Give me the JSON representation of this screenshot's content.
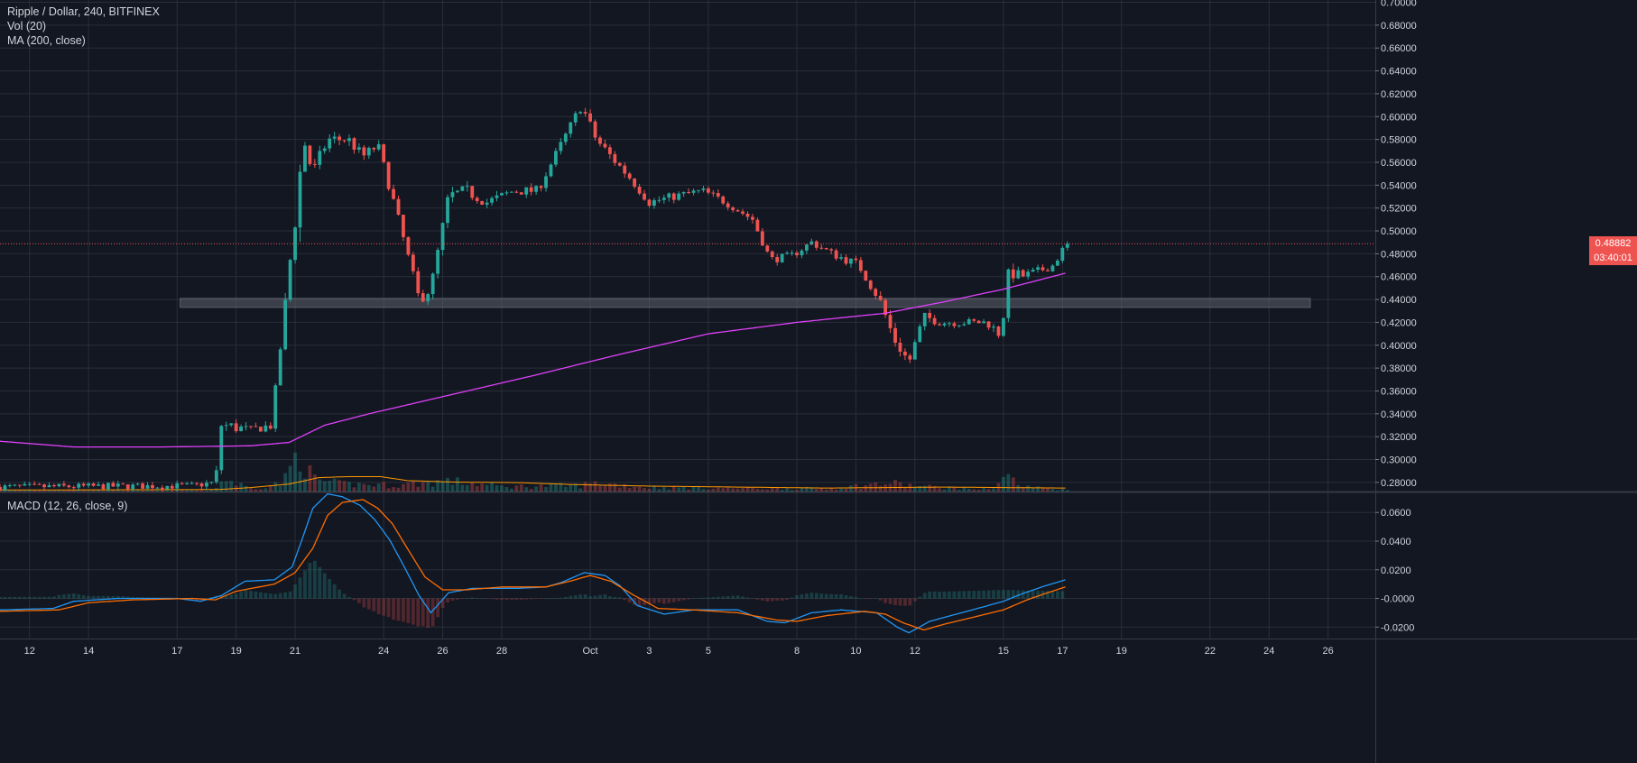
{
  "header": {
    "symbol_line": "Ripple / Dollar, 240, BITFINEX",
    "vol_label": "Vol (20)",
    "ma_label": "MA (200, close)",
    "macd_label": "MACD (12, 26, close, 9)"
  },
  "price_tags": {
    "last_price": "0.48882",
    "countdown": "03:40:01"
  },
  "colors": {
    "background": "#131722",
    "grid": "#2a2e39",
    "up": "#26a69a",
    "down": "#ef5350",
    "ma": "#e040fb",
    "macd": "#2196f3",
    "signal": "#ff6d00",
    "vol_ma": "#ff9800",
    "zone": "#5d606b"
  },
  "chart_data": [
    {
      "type": "candlestick",
      "title": "Ripple / Dollar, 240, BITFINEX",
      "ylim": [
        0.272,
        0.702
      ],
      "y_ticks": [
        "0.70000",
        "0.68000",
        "0.66000",
        "0.64000",
        "0.62000",
        "0.60000",
        "0.58000",
        "0.56000",
        "0.54000",
        "0.52000",
        "0.50000",
        "0.48000",
        "0.46000",
        "0.44000",
        "0.42000",
        "0.40000",
        "0.38000",
        "0.36000",
        "0.34000",
        "0.32000",
        "0.30000",
        "0.28000"
      ],
      "x_ticks": [
        {
          "day": 12,
          "label": "12"
        },
        {
          "day": 14,
          "label": "14"
        },
        {
          "day": 17,
          "label": "17"
        },
        {
          "day": 19,
          "label": "19"
        },
        {
          "day": 21,
          "label": "21"
        },
        {
          "day": 24,
          "label": "24"
        },
        {
          "day": 26,
          "label": "26"
        },
        {
          "day": 28,
          "label": "28"
        },
        {
          "day": 31,
          "label": "Oct"
        },
        {
          "day": 33,
          "label": "3"
        },
        {
          "day": 35,
          "label": "5"
        },
        {
          "day": 38,
          "label": "8"
        },
        {
          "day": 40,
          "label": "10"
        },
        {
          "day": 42,
          "label": "12"
        },
        {
          "day": 45,
          "label": "15"
        },
        {
          "day": 47,
          "label": "17"
        },
        {
          "day": 49,
          "label": "19"
        },
        {
          "day": 52,
          "label": "22"
        },
        {
          "day": 54,
          "label": "24"
        },
        {
          "day": 56,
          "label": "26"
        }
      ],
      "close_anchors": [
        [
          11,
          0.276
        ],
        [
          17.5,
          0.277
        ],
        [
          18.3,
          0.28
        ],
        [
          18.5,
          0.33
        ],
        [
          19.5,
          0.326
        ],
        [
          20.2,
          0.33
        ],
        [
          20.6,
          0.42
        ],
        [
          20.9,
          0.49
        ],
        [
          21.3,
          0.58
        ],
        [
          21.6,
          0.55
        ],
        [
          22.1,
          0.58
        ],
        [
          22.8,
          0.58
        ],
        [
          23.3,
          0.565
        ],
        [
          23.8,
          0.575
        ],
        [
          24.4,
          0.52
        ],
        [
          24.9,
          0.47
        ],
        [
          25.2,
          0.44
        ],
        [
          25.6,
          0.45
        ],
        [
          26.2,
          0.53
        ],
        [
          26.8,
          0.535
        ],
        [
          27.5,
          0.525
        ],
        [
          28.4,
          0.535
        ],
        [
          29.2,
          0.535
        ],
        [
          30.0,
          0.575
        ],
        [
          30.7,
          0.61
        ],
        [
          31.2,
          0.58
        ],
        [
          31.7,
          0.565
        ],
        [
          32.4,
          0.545
        ],
        [
          33.0,
          0.525
        ],
        [
          33.8,
          0.53
        ],
        [
          34.8,
          0.535
        ],
        [
          35.6,
          0.525
        ],
        [
          36.5,
          0.51
        ],
        [
          37.1,
          0.475
        ],
        [
          37.8,
          0.478
        ],
        [
          38.5,
          0.49
        ],
        [
          39.2,
          0.48
        ],
        [
          40.1,
          0.47
        ],
        [
          40.8,
          0.44
        ],
        [
          41.3,
          0.405
        ],
        [
          41.8,
          0.385
        ],
        [
          42.3,
          0.425
        ],
        [
          42.9,
          0.42
        ],
        [
          43.6,
          0.42
        ],
        [
          44.4,
          0.42
        ],
        [
          44.9,
          0.41
        ],
        [
          45.2,
          0.465
        ],
        [
          45.6,
          0.46
        ],
        [
          46.2,
          0.465
        ],
        [
          46.7,
          0.47
        ],
        [
          47.1,
          0.488
        ]
      ],
      "candles_per_day": 6,
      "last_price": 0.48882,
      "support_zone": [
        0.433,
        0.441
      ],
      "ma_anchors": [
        [
          11,
          0.316
        ],
        [
          13.5,
          0.311
        ],
        [
          16.5,
          0.311
        ],
        [
          19.5,
          0.312
        ],
        [
          20.8,
          0.315
        ],
        [
          22.0,
          0.33
        ],
        [
          23.5,
          0.34
        ],
        [
          26.0,
          0.355
        ],
        [
          29.0,
          0.373
        ],
        [
          32.0,
          0.392
        ],
        [
          35.0,
          0.41
        ],
        [
          38.0,
          0.42
        ],
        [
          41.0,
          0.428
        ],
        [
          43.0,
          0.438
        ],
        [
          45.0,
          0.449
        ],
        [
          47.1,
          0.463
        ]
      ],
      "volume_anchors": [
        [
          11,
          3
        ],
        [
          18.2,
          4
        ],
        [
          18.6,
          30
        ],
        [
          19.5,
          7
        ],
        [
          20.6,
          20
        ],
        [
          21.1,
          95
        ],
        [
          21.6,
          30
        ],
        [
          22.5,
          18
        ],
        [
          24.5,
          15
        ],
        [
          25.2,
          20
        ],
        [
          26.2,
          25
        ],
        [
          28.0,
          12
        ],
        [
          30.5,
          14
        ],
        [
          31.3,
          20
        ],
        [
          33.0,
          10
        ],
        [
          36.0,
          8
        ],
        [
          39.0,
          7
        ],
        [
          41.2,
          20
        ],
        [
          42.2,
          12
        ],
        [
          44.5,
          5
        ],
        [
          45.1,
          40
        ],
        [
          45.6,
          12
        ],
        [
          47.1,
          4
        ]
      ],
      "vol_ma_anchors": [
        [
          11,
          3
        ],
        [
          18.4,
          4
        ],
        [
          19.5,
          8
        ],
        [
          20.8,
          15
        ],
        [
          21.8,
          28
        ],
        [
          22.8,
          30
        ],
        [
          23.9,
          30
        ],
        [
          24.8,
          22
        ],
        [
          26.5,
          19
        ],
        [
          28.5,
          18
        ],
        [
          30.5,
          14
        ],
        [
          33.0,
          11
        ],
        [
          36.0,
          9
        ],
        [
          39.0,
          7
        ],
        [
          41.0,
          8
        ],
        [
          43.0,
          9
        ],
        [
          45.0,
          8
        ],
        [
          47.1,
          7
        ]
      ],
      "volume_max": 100
    },
    {
      "type": "line",
      "title": "MACD (12, 26, close, 9)",
      "ylim": [
        -0.028,
        0.074
      ],
      "y_ticks": [
        "0.0600",
        "0.0400",
        "0.0200",
        "-0.0000",
        "-0.0200"
      ],
      "y_tick_values": [
        0.06,
        0.04,
        0.02,
        0.0,
        -0.02
      ],
      "series": [
        {
          "name": "MACD",
          "points": [
            [
              11,
              -0.008
            ],
            [
              12.8,
              -0.007
            ],
            [
              13.5,
              -0.002
            ],
            [
              15.0,
              0.0
            ],
            [
              17.0,
              0.0
            ],
            [
              17.8,
              -0.002
            ],
            [
              18.5,
              0.002
            ],
            [
              19.3,
              0.012
            ],
            [
              20.3,
              0.013
            ],
            [
              20.9,
              0.022
            ],
            [
              21.3,
              0.045
            ],
            [
              21.6,
              0.063
            ],
            [
              22.1,
              0.073
            ],
            [
              22.6,
              0.071
            ],
            [
              23.2,
              0.065
            ],
            [
              23.7,
              0.055
            ],
            [
              24.2,
              0.041
            ],
            [
              24.7,
              0.022
            ],
            [
              25.2,
              0.002
            ],
            [
              25.6,
              -0.01
            ],
            [
              26.2,
              0.004
            ],
            [
              27.0,
              0.007
            ],
            [
              28.5,
              0.007
            ],
            [
              29.5,
              0.008
            ],
            [
              30.0,
              0.011
            ],
            [
              30.8,
              0.018
            ],
            [
              31.5,
              0.016
            ],
            [
              32.0,
              0.009
            ],
            [
              32.6,
              -0.005
            ],
            [
              33.5,
              -0.011
            ],
            [
              34.5,
              -0.008
            ],
            [
              36.0,
              -0.008
            ],
            [
              37.0,
              -0.016
            ],
            [
              37.6,
              -0.017
            ],
            [
              38.5,
              -0.01
            ],
            [
              39.5,
              -0.008
            ],
            [
              40.7,
              -0.01
            ],
            [
              41.4,
              -0.02
            ],
            [
              41.8,
              -0.024
            ],
            [
              42.5,
              -0.016
            ],
            [
              43.4,
              -0.011
            ],
            [
              44.3,
              -0.006
            ],
            [
              45.0,
              -0.002
            ],
            [
              45.6,
              0.003
            ],
            [
              46.3,
              0.008
            ],
            [
              47.1,
              0.013
            ]
          ]
        },
        {
          "name": "Signal",
          "points": [
            [
              11,
              -0.009
            ],
            [
              13.0,
              -0.008
            ],
            [
              14.0,
              -0.003
            ],
            [
              15.5,
              -0.001
            ],
            [
              17.5,
              0.0
            ],
            [
              18.3,
              -0.001
            ],
            [
              19.0,
              0.005
            ],
            [
              20.3,
              0.01
            ],
            [
              21.0,
              0.018
            ],
            [
              21.6,
              0.035
            ],
            [
              22.1,
              0.058
            ],
            [
              22.6,
              0.067
            ],
            [
              23.3,
              0.069
            ],
            [
              23.8,
              0.063
            ],
            [
              24.3,
              0.052
            ],
            [
              24.8,
              0.035
            ],
            [
              25.4,
              0.015
            ],
            [
              26.0,
              0.006
            ],
            [
              26.8,
              0.006
            ],
            [
              28.0,
              0.008
            ],
            [
              29.5,
              0.008
            ],
            [
              30.3,
              0.012
            ],
            [
              31.0,
              0.016
            ],
            [
              31.7,
              0.012
            ],
            [
              32.5,
              0.002
            ],
            [
              33.3,
              -0.007
            ],
            [
              34.5,
              -0.008
            ],
            [
              36.0,
              -0.01
            ],
            [
              37.3,
              -0.015
            ],
            [
              38.0,
              -0.016
            ],
            [
              39.0,
              -0.012
            ],
            [
              40.3,
              -0.009
            ],
            [
              41.0,
              -0.011
            ],
            [
              41.6,
              -0.017
            ],
            [
              42.3,
              -0.022
            ],
            [
              43.0,
              -0.018
            ],
            [
              44.0,
              -0.013
            ],
            [
              45.0,
              -0.008
            ],
            [
              45.8,
              -0.001
            ],
            [
              46.5,
              0.004
            ],
            [
              47.1,
              0.008
            ]
          ]
        }
      ]
    }
  ]
}
